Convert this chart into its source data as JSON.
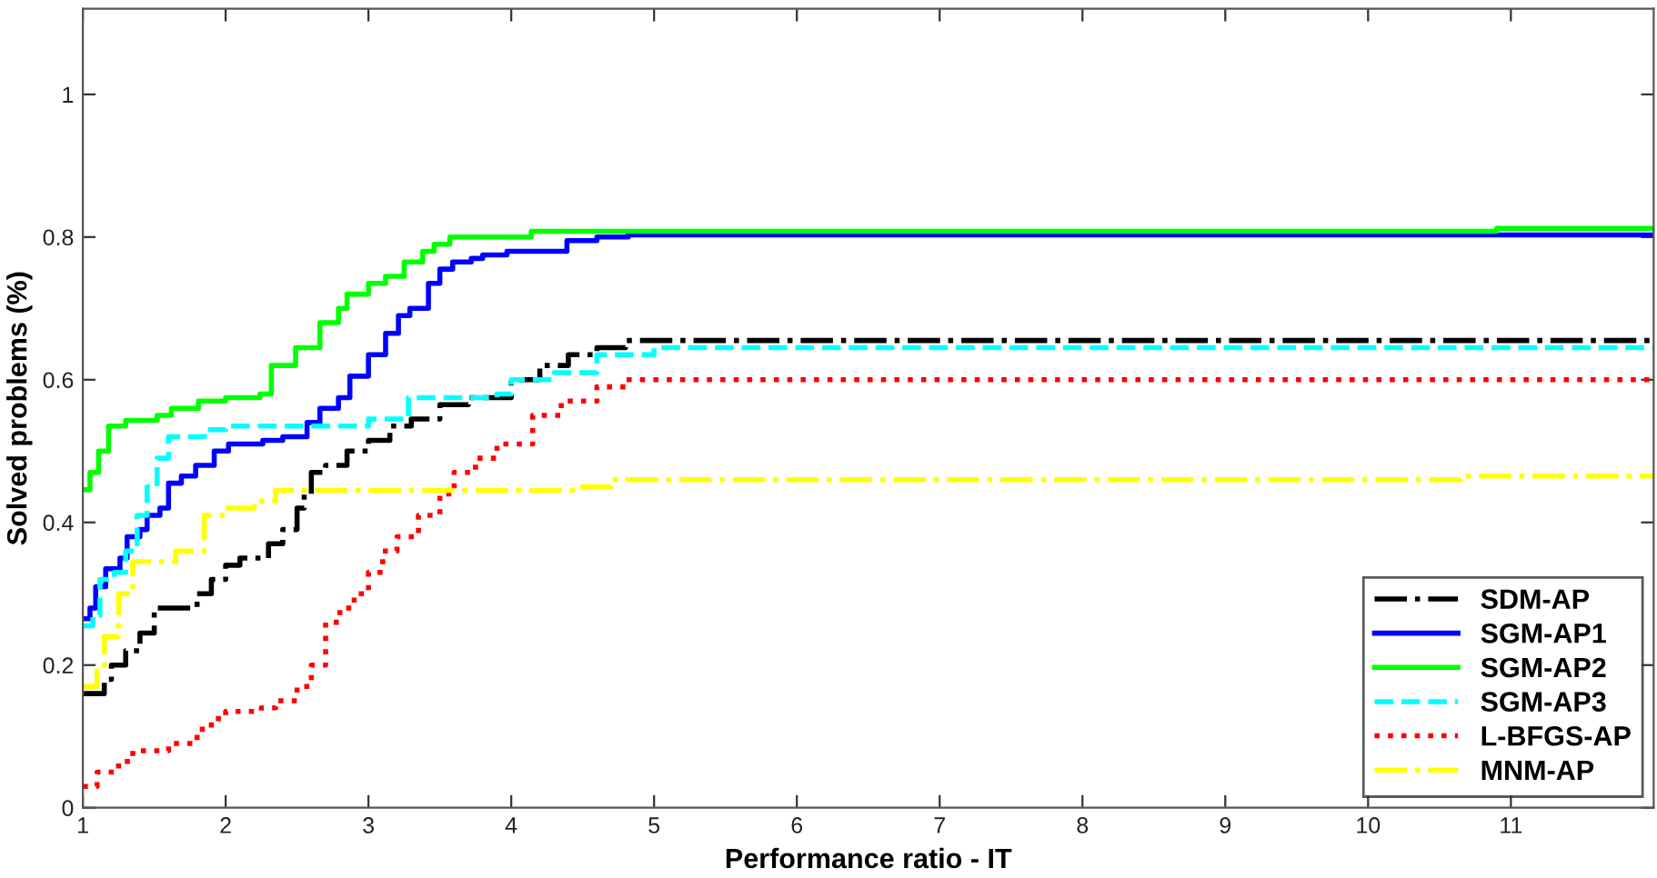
{
  "chart_data": {
    "type": "step",
    "xlabel": "Performance ratio - IT",
    "ylabel": "Solved problems (%)",
    "xlim": [
      1,
      12
    ],
    "ylim": [
      0,
      1.12
    ],
    "xticks": [
      1,
      2,
      3,
      4,
      5,
      6,
      7,
      8,
      9,
      10,
      11
    ],
    "yticks": [
      0,
      0.2,
      0.4,
      0.6,
      0.8,
      1
    ],
    "grid": false,
    "legend": "bottom right",
    "series": [
      {
        "name": "SDM-AP",
        "color": "#000000",
        "line_style": "dashdot",
        "x": [
          1,
          1.15,
          1.2,
          1.3,
          1.4,
          1.5,
          1.8,
          1.9,
          2.0,
          2.1,
          2.3,
          2.4,
          2.5,
          2.55,
          2.6,
          2.7,
          2.85,
          3.0,
          3.15,
          3.3,
          3.5,
          3.7,
          4.0,
          4.2,
          4.4,
          4.6,
          4.8,
          12
        ],
        "values": [
          0.16,
          0.18,
          0.2,
          0.22,
          0.245,
          0.28,
          0.3,
          0.32,
          0.34,
          0.35,
          0.37,
          0.39,
          0.42,
          0.44,
          0.47,
          0.48,
          0.5,
          0.515,
          0.535,
          0.545,
          0.565,
          0.575,
          0.6,
          0.62,
          0.635,
          0.645,
          0.655,
          0.655
        ]
      },
      {
        "name": "SGM-AP1",
        "color": "#0000ff",
        "line_style": "solid",
        "x": [
          1,
          1.05,
          1.09,
          1.16,
          1.26,
          1.31,
          1.4,
          1.45,
          1.54,
          1.6,
          1.69,
          1.79,
          1.92,
          2.02,
          2.26,
          2.4,
          2.57,
          2.66,
          2.79,
          2.87,
          3.0,
          3.12,
          3.21,
          3.29,
          3.42,
          3.5,
          3.59,
          3.72,
          3.8,
          3.97,
          4.39,
          4.6,
          4.82,
          12
        ],
        "values": [
          0.265,
          0.28,
          0.31,
          0.335,
          0.35,
          0.38,
          0.39,
          0.41,
          0.42,
          0.455,
          0.465,
          0.48,
          0.5,
          0.51,
          0.515,
          0.52,
          0.54,
          0.56,
          0.575,
          0.605,
          0.635,
          0.665,
          0.69,
          0.7,
          0.735,
          0.755,
          0.765,
          0.77,
          0.775,
          0.78,
          0.795,
          0.8,
          0.803,
          0.803
        ]
      },
      {
        "name": "SGM-AP2",
        "color": "#00ff00",
        "line_style": "solid",
        "x": [
          1,
          1.05,
          1.11,
          1.18,
          1.3,
          1.52,
          1.62,
          1.81,
          2.0,
          2.24,
          2.32,
          2.49,
          2.66,
          2.79,
          2.85,
          3.0,
          3.12,
          3.25,
          3.38,
          3.46,
          3.57,
          4.14,
          10.9,
          12
        ],
        "values": [
          0.446,
          0.47,
          0.5,
          0.535,
          0.543,
          0.55,
          0.56,
          0.57,
          0.575,
          0.58,
          0.62,
          0.645,
          0.68,
          0.7,
          0.72,
          0.735,
          0.745,
          0.765,
          0.78,
          0.79,
          0.8,
          0.808,
          0.812,
          0.812
        ]
      },
      {
        "name": "SGM-AP3",
        "color": "#00ffff",
        "line_style": "dashed",
        "x": [
          1,
          1.07,
          1.12,
          1.22,
          1.3,
          1.38,
          1.45,
          1.52,
          1.6,
          1.85,
          2.0,
          3.0,
          3.28,
          3.9,
          4.0,
          4.3,
          4.6,
          5.0,
          12
        ],
        "values": [
          0.255,
          0.27,
          0.32,
          0.33,
          0.36,
          0.41,
          0.45,
          0.49,
          0.52,
          0.53,
          0.535,
          0.545,
          0.575,
          0.58,
          0.6,
          0.61,
          0.635,
          0.645,
          0.645
        ]
      },
      {
        "name": "L-BFGS-AP",
        "color": "#ff0000",
        "line_style": "dotted",
        "x": [
          1,
          1.1,
          1.25,
          1.35,
          1.6,
          1.8,
          1.9,
          2.0,
          2.25,
          2.35,
          2.5,
          2.6,
          2.7,
          2.8,
          2.9,
          3.0,
          3.1,
          3.2,
          3.35,
          3.5,
          3.6,
          3.75,
          3.9,
          4.15,
          4.35,
          4.6,
          4.8,
          12
        ],
        "values": [
          0.03,
          0.05,
          0.065,
          0.08,
          0.09,
          0.11,
          0.125,
          0.135,
          0.14,
          0.15,
          0.17,
          0.2,
          0.26,
          0.28,
          0.3,
          0.33,
          0.36,
          0.38,
          0.41,
          0.44,
          0.47,
          0.49,
          0.51,
          0.55,
          0.57,
          0.59,
          0.6,
          0.6
        ]
      },
      {
        "name": "MNM-AP",
        "color": "#ffff00",
        "line_style": "dashdot",
        "x": [
          1,
          1.1,
          1.15,
          1.25,
          1.35,
          1.65,
          1.85,
          2.0,
          2.2,
          2.35,
          4.5,
          4.7,
          10.65,
          12
        ],
        "values": [
          0.17,
          0.2,
          0.24,
          0.3,
          0.345,
          0.36,
          0.41,
          0.42,
          0.43,
          0.445,
          0.45,
          0.46,
          0.465,
          0.465
        ]
      }
    ]
  }
}
